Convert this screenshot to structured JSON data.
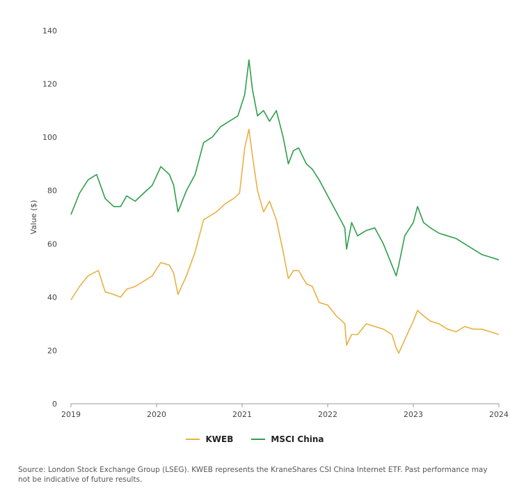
{
  "chart_data": {
    "type": "line",
    "ylabel": "Value ($)",
    "xlabel": "",
    "ylim": [
      0,
      140
    ],
    "yticks": [
      0,
      20,
      40,
      60,
      80,
      100,
      120,
      140
    ],
    "xlim": [
      2019.0,
      2024.0
    ],
    "xticks": [
      2019,
      2020,
      2021,
      2022,
      2023,
      2024
    ],
    "xtick_labels": [
      "2019",
      "2020",
      "2021",
      "2022",
      "2023",
      "2024"
    ],
    "grid": false,
    "legend": "bottom-center",
    "series": [
      {
        "name": "KWEB",
        "color": "#E8B040",
        "x": [
          2019.0,
          2019.1,
          2019.2,
          2019.32,
          2019.4,
          2019.5,
          2019.58,
          2019.65,
          2019.75,
          2019.85,
          2019.95,
          2020.05,
          2020.15,
          2020.2,
          2020.25,
          2020.35,
          2020.45,
          2020.55,
          2020.6,
          2020.7,
          2020.8,
          2020.9,
          2020.97,
          2021.03,
          2021.08,
          2021.12,
          2021.18,
          2021.25,
          2021.32,
          2021.4,
          2021.48,
          2021.54,
          2021.6,
          2021.66,
          2021.75,
          2021.82,
          2021.9,
          2022.0,
          2022.1,
          2022.2,
          2022.22,
          2022.28,
          2022.35,
          2022.45,
          2022.55,
          2022.65,
          2022.75,
          2022.8,
          2022.83,
          2022.9,
          2023.0,
          2023.05,
          2023.12,
          2023.2,
          2023.3,
          2023.4,
          2023.5,
          2023.6,
          2023.7,
          2023.8,
          2023.9,
          2024.0
        ],
        "values": [
          39,
          44,
          48,
          50,
          42,
          41,
          40,
          43,
          44,
          46,
          48,
          53,
          52,
          49,
          41,
          48,
          57,
          69,
          70,
          72,
          75,
          77,
          79,
          96,
          103,
          93,
          80,
          72,
          76,
          69,
          57,
          47,
          50,
          50,
          45,
          44,
          38,
          37,
          33,
          30,
          22,
          26,
          26,
          30,
          29,
          28,
          26,
          21,
          19,
          24,
          31,
          35,
          33,
          31,
          30,
          28,
          27,
          29,
          28,
          28,
          27,
          26
        ]
      },
      {
        "name": "MSCI China",
        "color": "#2E9E4A",
        "x": [
          2019.0,
          2019.1,
          2019.2,
          2019.3,
          2019.4,
          2019.5,
          2019.58,
          2019.65,
          2019.75,
          2019.85,
          2019.95,
          2020.05,
          2020.15,
          2020.2,
          2020.25,
          2020.35,
          2020.45,
          2020.55,
          2020.65,
          2020.75,
          2020.85,
          2020.95,
          2021.03,
          2021.08,
          2021.12,
          2021.18,
          2021.25,
          2021.32,
          2021.4,
          2021.48,
          2021.54,
          2021.6,
          2021.66,
          2021.75,
          2021.82,
          2021.9,
          2022.0,
          2022.1,
          2022.2,
          2022.22,
          2022.28,
          2022.35,
          2022.45,
          2022.55,
          2022.65,
          2022.75,
          2022.8,
          2022.83,
          2022.9,
          2023.0,
          2023.05,
          2023.12,
          2023.2,
          2023.3,
          2023.4,
          2023.5,
          2023.6,
          2023.7,
          2023.8,
          2023.9,
          2024.0
        ],
        "values": [
          71,
          79,
          84,
          86,
          77,
          74,
          74,
          78,
          76,
          79,
          82,
          89,
          86,
          82,
          72,
          80,
          86,
          98,
          100,
          104,
          106,
          108,
          116,
          129,
          118,
          108,
          110,
          106,
          110,
          100,
          90,
          95,
          96,
          90,
          88,
          84,
          78,
          72,
          66,
          58,
          68,
          63,
          65,
          66,
          60,
          52,
          48,
          52,
          63,
          68,
          74,
          68,
          66,
          64,
          63,
          62,
          60,
          58,
          56,
          55,
          54
        ]
      }
    ]
  },
  "source_text": "Source: London Stock Exchange Group (LSEG). KWEB represents the KraneShares CSI China Internet ETF. Past performance may not be indicative of future results."
}
